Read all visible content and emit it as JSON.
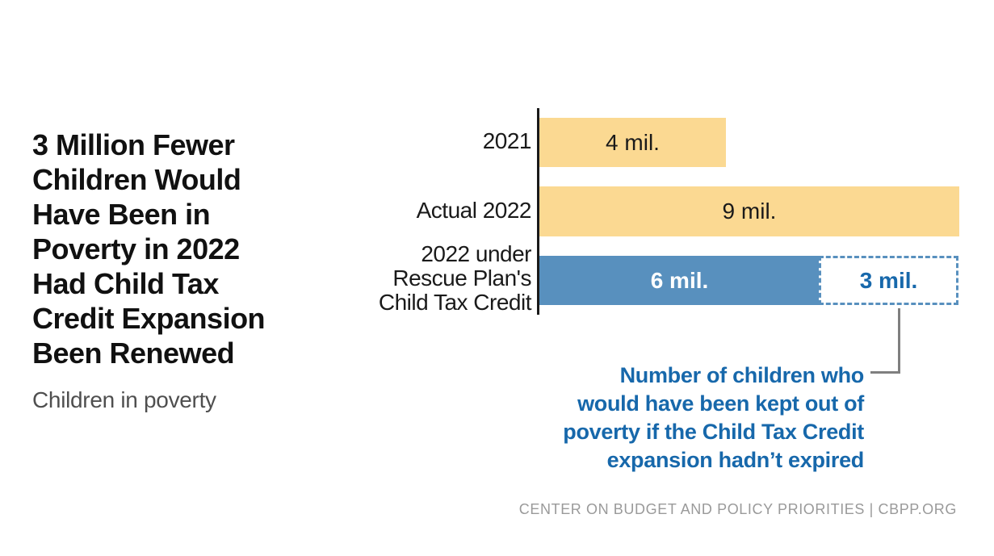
{
  "header": {
    "title_lines": [
      "3 Million Fewer",
      "Children Would",
      "Have Been in",
      "Poverty in 2022",
      "Had Child Tax",
      "Credit Expansion",
      "Been Renewed"
    ],
    "title": "3 Million Fewer Children Would Have Been in Poverty in 2022 Had Child Tax Credit Expansion Been Renewed",
    "subtitle": "Children in poverty"
  },
  "chart": {
    "category_2021": "2021",
    "category_actual_2022": "Actual 2022",
    "category_rescue_lines": [
      "2022 under",
      "Rescue Plan's",
      "Child Tax Credit"
    ],
    "bar_labels": [
      "4 mil.",
      "9 mil.",
      "6 mil.",
      "3 mil."
    ],
    "annotation_lines": [
      "Number of children who",
      "would have been kept out of",
      "poverty if the Child Tax Credit",
      "expansion hadn’t expired"
    ]
  },
  "chart_data": {
    "type": "bar",
    "orientation": "horizontal",
    "title": "3 Million Fewer Children Would Have Been in Poverty in 2022 Had Child Tax Credit Expansion Been Renewed",
    "subtitle": "Children in poverty",
    "unit": "millions of children",
    "categories": [
      "2021",
      "Actual 2022",
      "2022 under Rescue Plan's Child Tax Credit"
    ],
    "series": [
      {
        "name": "Children in poverty",
        "values": [
          4,
          9,
          6
        ]
      },
      {
        "name": "Children who would have been kept out of poverty if the Child Tax Credit expansion hadn't expired",
        "values": [
          0,
          0,
          3
        ]
      }
    ],
    "data_labels": [
      "4 mil.",
      "9 mil.",
      "6 mil.",
      "3 mil."
    ],
    "xlim": [
      0,
      9
    ],
    "grid": false,
    "legend": false,
    "annotation": "Number of children who would have been kept out of poverty if the Child Tax Credit expansion hadn’t expired",
    "colors": {
      "bar_tan": "#FBD992",
      "bar_blue": "#5890BE",
      "dashed_outline_blue": "#5890BE",
      "annotation_blue": "#1768AB",
      "axis_black": "#1a1a1a",
      "connector_gray": "#7f7f7f",
      "footer_gray": "#9a9a9a"
    }
  },
  "footer": {
    "credit": "CENTER ON BUDGET AND POLICY PRIORITIES | CBPP.ORG"
  }
}
